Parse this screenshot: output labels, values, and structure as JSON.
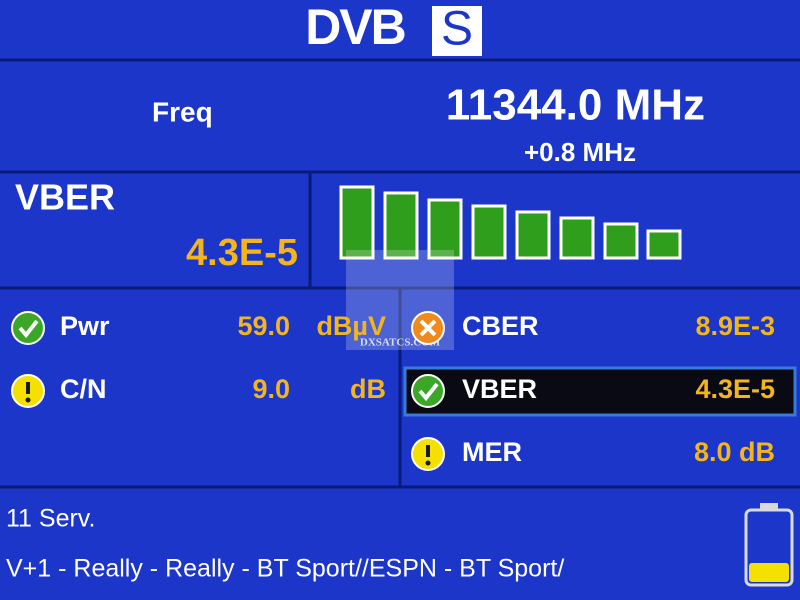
{
  "header": {
    "logo_left": "DVB",
    "logo_right": "S"
  },
  "frequency": {
    "label": "Freq",
    "value": "11344.0 MHz",
    "offset": "+0.8 MHz"
  },
  "vber_panel": {
    "label": "VBER",
    "value": "4.3E-5"
  },
  "measurements_left": [
    {
      "label": "Pwr",
      "value": "59.0",
      "unit": "dBµV",
      "status": "ok"
    },
    {
      "label": "C/N",
      "value": "9.0",
      "unit": "dB",
      "status": "warning"
    }
  ],
  "measurements_right": [
    {
      "label": "CBER",
      "value": "8.9E-3",
      "status": "error",
      "selected": false
    },
    {
      "label": "VBER",
      "value": "4.3E-5",
      "status": "ok",
      "selected": true
    },
    {
      "label": "MER",
      "value": "8.0 dB",
      "status": "warning",
      "selected": false
    }
  ],
  "services": {
    "count": "11 Serv.",
    "list": "V+1 - Really - Really - BT Sport//ESPN - BT Sport/"
  },
  "watermark": "DXSATCS.COM"
}
